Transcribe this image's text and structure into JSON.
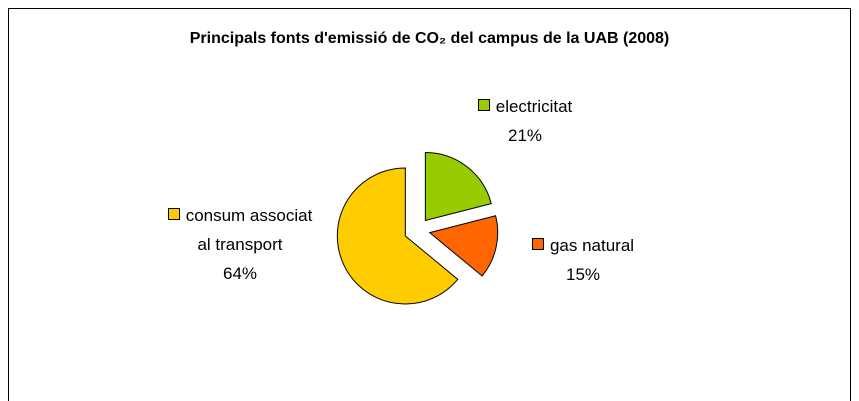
{
  "chart_data": {
    "type": "pie",
    "title": "Principals fonts d'emissió de CO₂ del campus de la UAB (2008)",
    "categories": [
      "electricitat",
      "gas natural",
      "consum associat al transport"
    ],
    "values": [
      21,
      15,
      64
    ],
    "value_labels": [
      "21%",
      "15%",
      "64%"
    ],
    "colors": [
      "#99cc00",
      "#ff6600",
      "#ffcc00"
    ]
  }
}
